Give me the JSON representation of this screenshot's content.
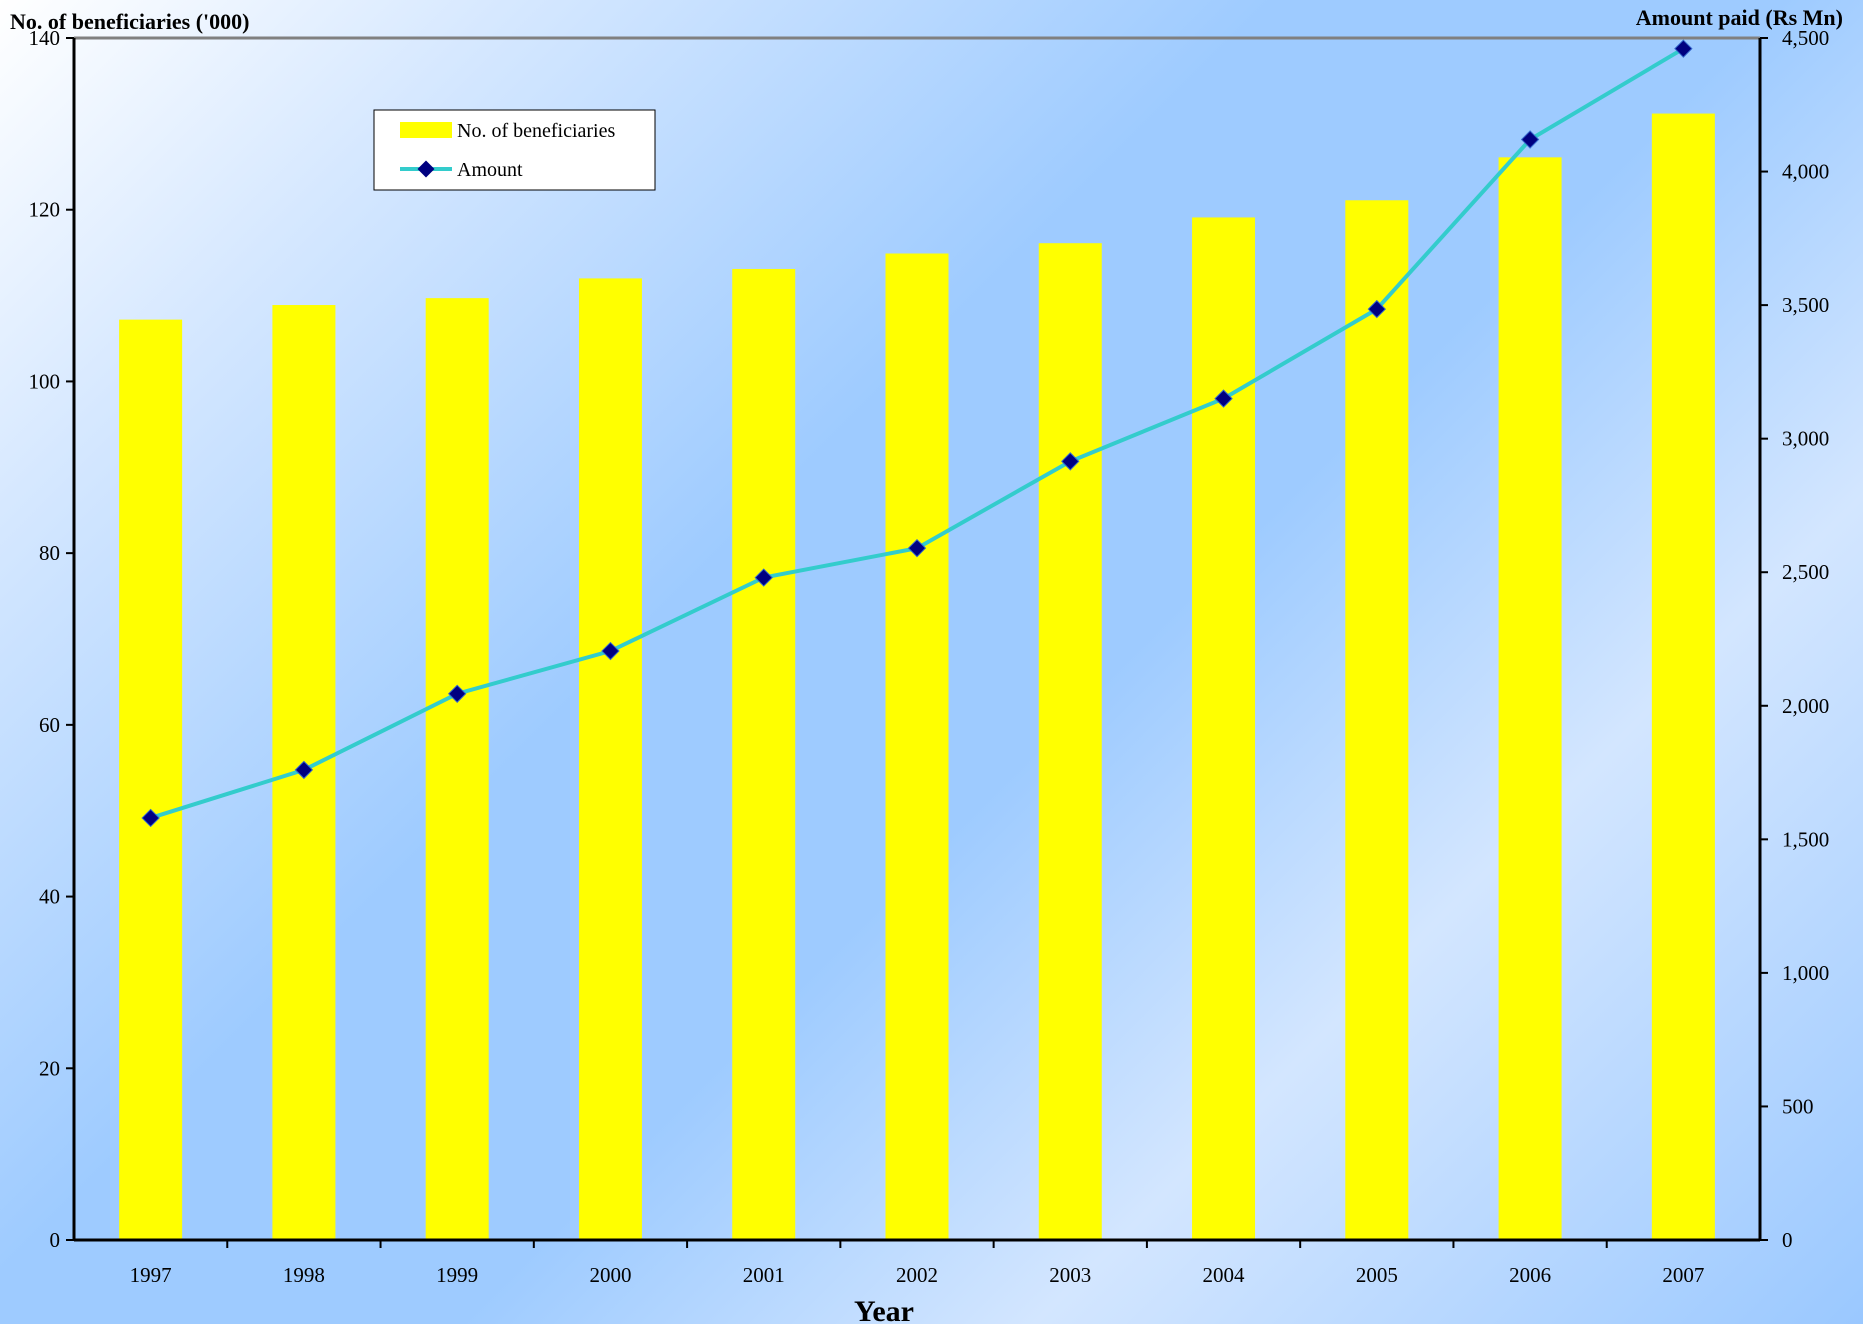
{
  "chart_data": {
    "type": "bar",
    "categories": [
      "1997",
      "1998",
      "1999",
      "2000",
      "2001",
      "2002",
      "2003",
      "2004",
      "2005",
      "2006",
      "2007"
    ],
    "series": [
      {
        "name": "No. of beneficiaries",
        "type": "bar",
        "axis": "left",
        "color": "#ffff00",
        "values": [
          107.2,
          108.9,
          109.7,
          112.0,
          113.1,
          114.9,
          116.1,
          119.1,
          121.1,
          126.1,
          131.2
        ]
      },
      {
        "name": "Amount",
        "type": "line",
        "axis": "right",
        "color": "#33cccc",
        "marker_color": "#000080",
        "values": [
          1580,
          1760,
          2045,
          2205,
          2480,
          2590,
          2915,
          3150,
          3485,
          4120,
          4460
        ]
      }
    ],
    "ylabel_left": "No. of beneficiaries ('000)",
    "ylabel_right": "Amount paid (Rs Mn)",
    "xlabel": "Year",
    "ylim_left": [
      0,
      140
    ],
    "ylim_right": [
      0,
      4500
    ],
    "yticks_left": [
      "0",
      "20",
      "40",
      "60",
      "80",
      "100",
      "120",
      "140"
    ],
    "yticks_right": [
      "0",
      "500",
      "1,000",
      "1,500",
      "2,000",
      "2,500",
      "3,000",
      "3,500",
      "4,000",
      "4,500"
    ],
    "grid": false,
    "legend_position": "top-left"
  }
}
